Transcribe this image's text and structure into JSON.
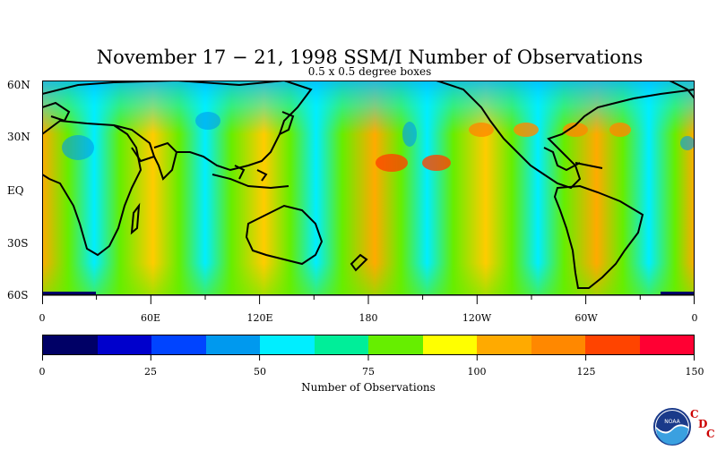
{
  "title": "November 17 − 21, 1998 SSM/I Number of Observations",
  "subtitle": "0.5 x 0.5 degree boxes",
  "lat_labels": [
    "60N",
    "30N",
    "EQ",
    "30S",
    "60S"
  ],
  "lon_labels": [
    "0",
    "60E",
    "120E",
    "180",
    "120W",
    "60W",
    "0"
  ],
  "colorbar": {
    "title": "Number of Observations",
    "tick_labels": [
      "0",
      "25",
      "50",
      "75",
      "100",
      "125",
      "150"
    ],
    "colors": [
      "#000066",
      "#0000cc",
      "#0044ff",
      "#0099ee",
      "#00eeff",
      "#00ee99",
      "#66ee00",
      "#ffff00",
      "#ffaa00",
      "#ff8800",
      "#ff4400",
      "#ff0033"
    ]
  },
  "logo": {
    "icon": "noaa-logo",
    "text": "NOAA",
    "letters": [
      "C",
      "D",
      "C"
    ]
  }
}
